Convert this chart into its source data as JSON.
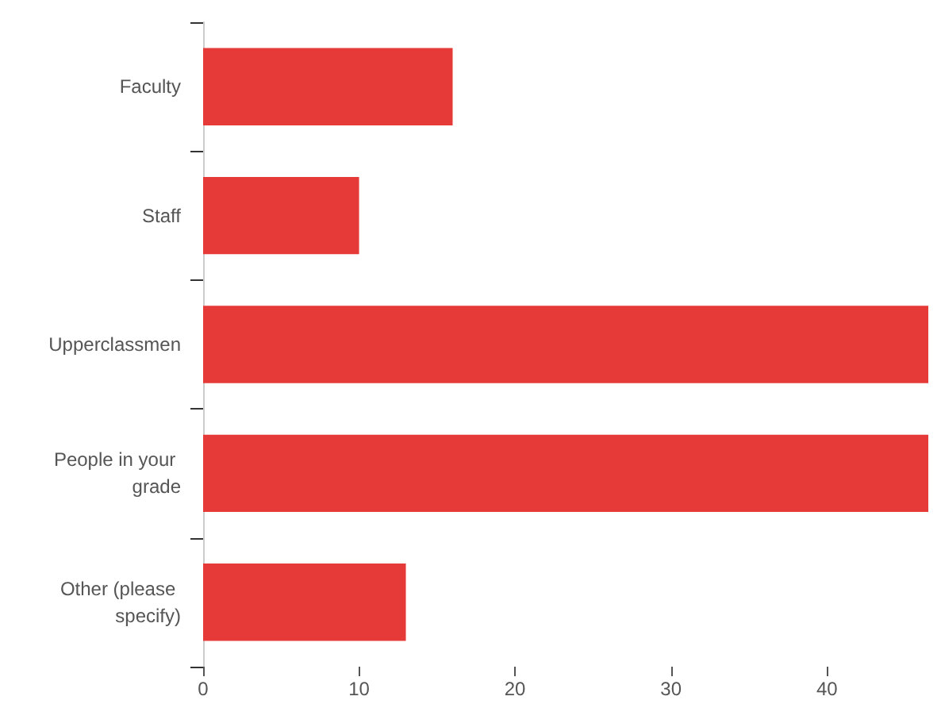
{
  "chart_data": {
    "type": "bar",
    "orientation": "horizontal",
    "categories": [
      "Faculty",
      "Staff",
      "Upperclassmen",
      "People in your grade",
      "Other (please specify)"
    ],
    "values": [
      16,
      10,
      46.5,
      46.5,
      13
    ],
    "color": "#e53a37",
    "xlim": [
      0,
      46.5
    ],
    "xticks": [
      0,
      10,
      20,
      30,
      40
    ],
    "grid": false
  }
}
